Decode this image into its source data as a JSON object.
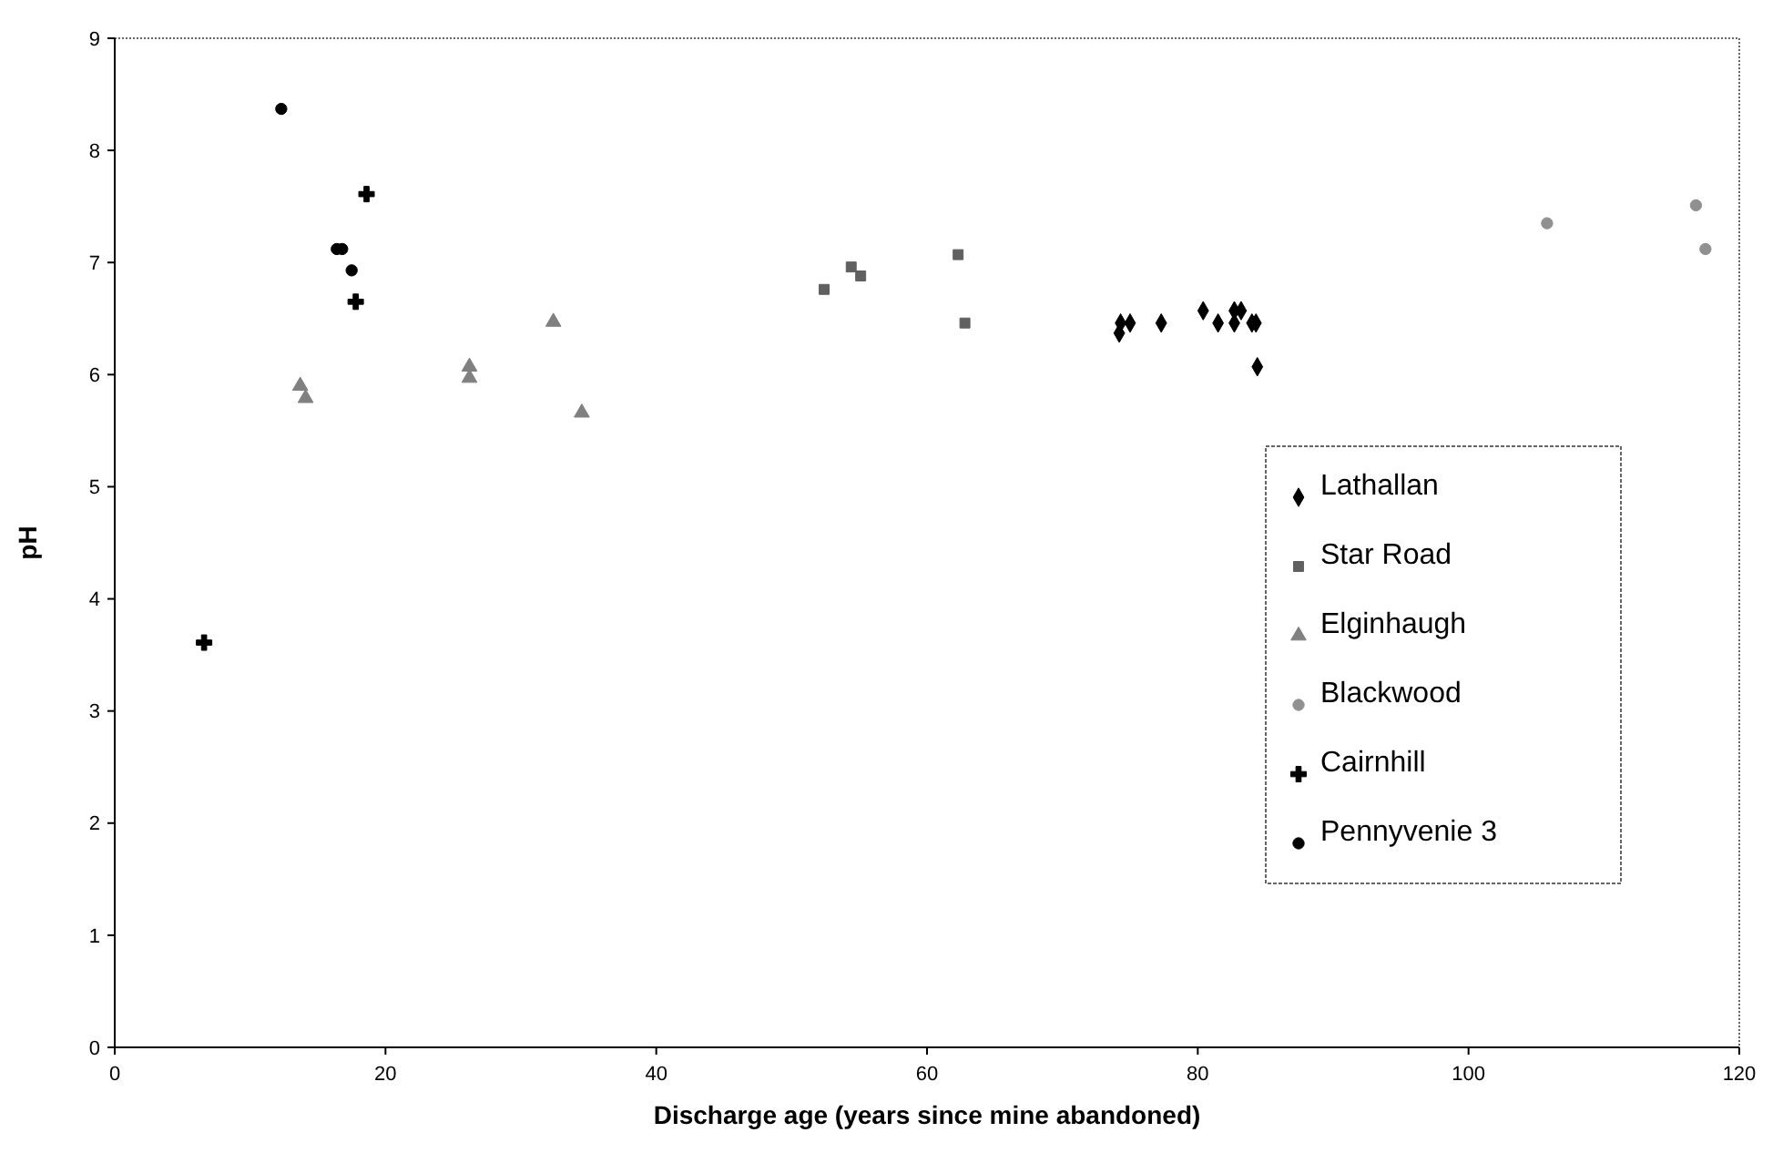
{
  "chart_data": {
    "type": "scatter",
    "xlabel": "Discharge age (years since mine abandoned)",
    "ylabel": "pH",
    "xlim": [
      0,
      120
    ],
    "ylim": [
      0,
      9
    ],
    "xticks": [
      0,
      20,
      40,
      60,
      80,
      100,
      120
    ],
    "yticks": [
      0,
      1,
      2,
      3,
      4,
      5,
      6,
      7,
      8,
      9
    ],
    "grid": false,
    "legend": "right",
    "series": [
      {
        "name": "Lathallan",
        "color": "#000000",
        "marker": "diamond",
        "x": [
          74.2,
          74.3,
          75.0,
          77.3,
          80.4,
          81.5,
          82.7,
          82.7,
          83.2,
          84.0,
          84.3,
          84.4
        ],
        "values": [
          6.37,
          6.46,
          6.46,
          6.46,
          6.57,
          6.46,
          6.57,
          6.46,
          6.57,
          6.46,
          6.46,
          6.07
        ]
      },
      {
        "name": "Star Road",
        "color": "#606060",
        "marker": "square",
        "x": [
          52.4,
          54.4,
          55.1,
          62.3,
          62.8
        ],
        "values": [
          6.76,
          6.96,
          6.88,
          7.07,
          6.46
        ]
      },
      {
        "name": "Elginhaugh",
        "color": "#808080",
        "marker": "triangle",
        "x": [
          13.7,
          14.1,
          26.2,
          26.2,
          32.4,
          34.5
        ],
        "values": [
          5.9,
          5.79,
          6.07,
          5.97,
          6.47,
          5.66
        ]
      },
      {
        "name": "Blackwood",
        "color": "#909090",
        "marker": "circle",
        "x": [
          105.8,
          116.8,
          117.5
        ],
        "values": [
          7.35,
          7.51,
          7.12
        ]
      },
      {
        "name": "Cairnhill",
        "color": "#000000",
        "marker": "cross",
        "x": [
          18.6,
          17.8,
          6.6
        ],
        "values": [
          7.61,
          6.65,
          3.61
        ]
      },
      {
        "name": "Pennyvenie 3",
        "color": "#000000",
        "marker": "circle",
        "x": [
          12.3,
          16.4,
          16.8,
          17.5
        ],
        "values": [
          8.37,
          7.12,
          7.12,
          6.93
        ]
      }
    ]
  }
}
